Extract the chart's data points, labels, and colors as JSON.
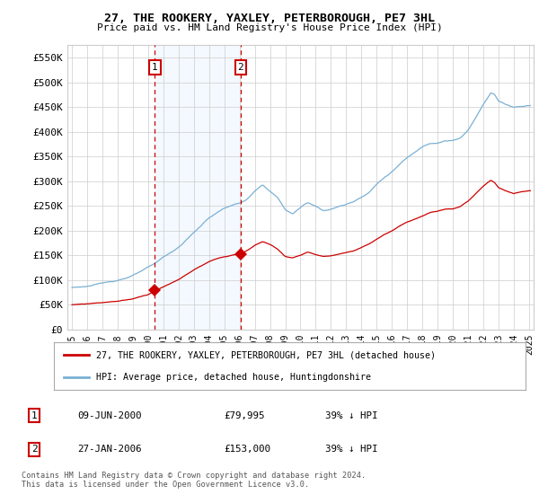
{
  "title": "27, THE ROOKERY, YAXLEY, PETERBOROUGH, PE7 3HL",
  "subtitle": "Price paid vs. HM Land Registry's House Price Index (HPI)",
  "legend_label_red": "27, THE ROOKERY, YAXLEY, PETERBOROUGH, PE7 3HL (detached house)",
  "legend_label_blue": "HPI: Average price, detached house, Huntingdonshire",
  "footnote": "Contains HM Land Registry data © Crown copyright and database right 2024.\nThis data is licensed under the Open Government Licence v3.0.",
  "table_rows": [
    {
      "num": "1",
      "date": "09-JUN-2000",
      "price": "£79,995",
      "pct": "39% ↓ HPI"
    },
    {
      "num": "2",
      "date": "27-JAN-2006",
      "price": "£153,000",
      "pct": "39% ↓ HPI"
    }
  ],
  "ylim": [
    0,
    575000
  ],
  "yticks": [
    0,
    50000,
    100000,
    150000,
    200000,
    250000,
    300000,
    350000,
    400000,
    450000,
    500000,
    550000
  ],
  "ytick_labels": [
    "£0",
    "£50K",
    "£100K",
    "£150K",
    "£200K",
    "£250K",
    "£300K",
    "£350K",
    "£400K",
    "£450K",
    "£500K",
    "£550K"
  ],
  "red_color": "#cc0000",
  "blue_color": "#7ab0d4",
  "shade_color": "#ddeeff",
  "grid_color": "#cccccc",
  "marker1_x": 2000.44,
  "marker2_x": 2006.07,
  "marker1_y": 79995,
  "marker2_y": 153000,
  "background_color": "#ffffff",
  "xlim_left": 1994.7,
  "xlim_right": 2025.3
}
